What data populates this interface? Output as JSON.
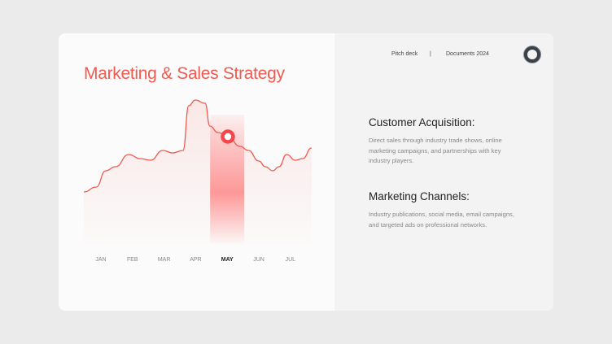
{
  "header": {
    "nav": [
      "Pitch deck",
      "|",
      "Documents 2024"
    ],
    "avatar_icon": "ring-avatar-icon"
  },
  "sections": [
    {
      "heading": "Customer Acquisition:",
      "body": "Direct sales through industry trade shows, online marketing campaigns, and partnerships with key industry players."
    },
    {
      "heading": "Marketing Channels:",
      "body": "Industry publications, social media, email campaigns, and targeted ads on professional networks."
    }
  ],
  "colors": {
    "accent": "#f05a4f",
    "highlight": "#ff8a8a"
  },
  "chart_data": {
    "type": "area",
    "title": "Marketing & Sales Strategy",
    "categories": [
      "JAN",
      "FEB",
      "MAR",
      "APR",
      "MAY",
      "JUN",
      "JUL"
    ],
    "highlighted": "MAY",
    "grid": false,
    "y_axis_shown": false,
    "series": [
      {
        "x": [
          -0.54,
          -0.15,
          0.15,
          0.46,
          0.88,
          1.24,
          1.57,
          1.96,
          2.27,
          2.6,
          2.78,
          2.99,
          3.3,
          3.45,
          3.71,
          4.02,
          4.41,
          4.67,
          5.0,
          5.21,
          5.44,
          5.64,
          5.88,
          6.16,
          6.39,
          6.67
        ],
        "values": [
          64,
          70,
          90,
          95,
          110,
          105,
          103,
          115,
          112,
          115,
          170,
          177,
          173,
          145,
          137,
          132,
          120,
          115,
          102,
          95,
          90,
          95,
          110,
          103,
          105,
          118
        ]
      }
    ],
    "marker": {
      "x": 4.02,
      "value": 132
    }
  }
}
